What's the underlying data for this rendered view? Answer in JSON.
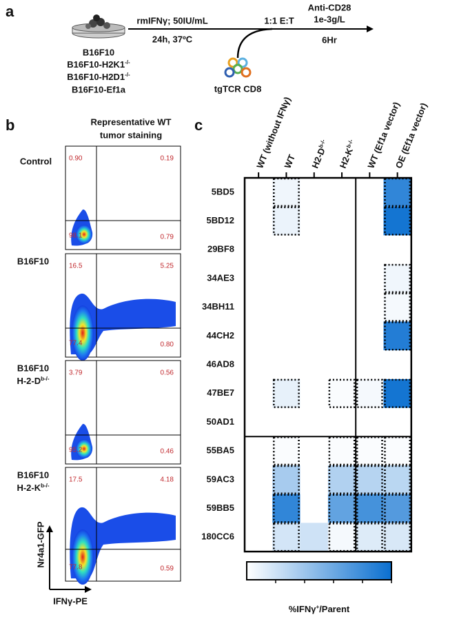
{
  "panel_a": {
    "letter": "a",
    "cell_lines": [
      "B16F10",
      {
        "base": "B16F10-H2K1",
        "sup": "-/-"
      },
      {
        "base": "B16F10-H2D1",
        "sup": "-/-"
      },
      "B16F10-Ef1a"
    ],
    "step1_top": "rmIFNγ; 50IU/mL",
    "step1_bottom": "24h, 37ºC",
    "step2_top": "1:1 E:T",
    "effector": "tgTCR CD8",
    "step3_top": [
      "Anti-CD28",
      "1e-3g/L"
    ],
    "step3_bottom": "6Hr"
  },
  "panel_b": {
    "letter": "b",
    "title": [
      "Representative WT",
      "tumor staining"
    ],
    "plots": [
      {
        "label": [
          "Control"
        ],
        "quadrants": [
          "0.90",
          "0.19",
          "98.1",
          "0.79"
        ]
      },
      {
        "label": [
          "B16F10"
        ],
        "quadrants": [
          "16.5",
          "5.25",
          "77.4",
          "0.80"
        ]
      },
      {
        "label": [
          "B16F10",
          {
            "base": "H-2-D",
            "sup": "b-/-"
          }
        ],
        "quadrants": [
          "3.79",
          "0.56",
          "95.2",
          "0.46"
        ]
      },
      {
        "label": [
          "B16F10",
          {
            "base": "H-2-K",
            "sup": "b-/-"
          }
        ],
        "quadrants": [
          "17.5",
          "4.18",
          "77.8",
          "0.59"
        ]
      }
    ],
    "y_label": "Nr4a1-GFP",
    "x_label": "IFNγ-PE"
  },
  "panel_c": {
    "letter": "c",
    "columns": [
      "WT (without IFNγ)",
      "WT",
      {
        "base": "H2-D",
        "sup": "b-/-"
      },
      {
        "base": "H2-K",
        "sup": "b-/-"
      },
      "WT (Ef1a vector)",
      "OE (Ef1a vector)"
    ],
    "rows": [
      "5BD5",
      "5BD12",
      "29BF8",
      "34AE3",
      "34BH11",
      "44CH2",
      "46AD8",
      "47BE7",
      "50AD1",
      "55BA5",
      "59AC3",
      "59BB5",
      "180CC6"
    ],
    "values": [
      [
        0,
        3,
        0,
        0,
        0,
        42
      ],
      [
        0,
        4,
        0,
        0,
        0,
        48
      ],
      [
        0,
        0,
        0,
        0,
        0,
        0
      ],
      [
        0,
        0,
        0,
        0,
        0,
        3
      ],
      [
        0,
        0,
        0,
        0,
        0,
        2
      ],
      [
        0,
        0,
        0,
        0,
        0,
        45
      ],
      [
        0,
        0,
        0,
        0,
        0,
        0
      ],
      [
        0,
        5,
        0,
        1,
        2,
        48
      ],
      [
        0,
        0,
        0,
        0,
        0,
        0
      ],
      [
        0,
        1,
        0,
        1,
        1,
        1
      ],
      [
        0,
        18,
        0,
        16,
        15,
        14
      ],
      [
        0,
        42,
        0,
        32,
        38,
        35
      ],
      [
        0,
        9,
        10,
        2,
        7,
        8
      ]
    ],
    "outlined": [
      [
        false,
        true,
        false,
        false,
        false,
        true
      ],
      [
        false,
        true,
        false,
        false,
        false,
        true
      ],
      [
        false,
        false,
        false,
        false,
        false,
        false
      ],
      [
        false,
        false,
        false,
        false,
        false,
        true
      ],
      [
        false,
        false,
        false,
        false,
        false,
        true
      ],
      [
        false,
        false,
        false,
        false,
        false,
        true
      ],
      [
        false,
        false,
        false,
        false,
        false,
        false
      ],
      [
        false,
        true,
        false,
        true,
        true,
        true
      ],
      [
        false,
        false,
        false,
        false,
        false,
        false
      ],
      [
        false,
        true,
        false,
        true,
        true,
        true
      ],
      [
        false,
        true,
        false,
        true,
        true,
        true
      ],
      [
        false,
        true,
        false,
        true,
        true,
        true
      ],
      [
        false,
        true,
        false,
        true,
        true,
        true
      ]
    ],
    "colormap": [
      "#ffffff",
      "#0a6fd0"
    ],
    "clim": [
      0,
      50
    ],
    "cticks": [
      10,
      20,
      30,
      40,
      50
    ],
    "colorbar_label": {
      "base": "%IFNγ",
      "sup": "+",
      "rest": "/Parent"
    }
  }
}
